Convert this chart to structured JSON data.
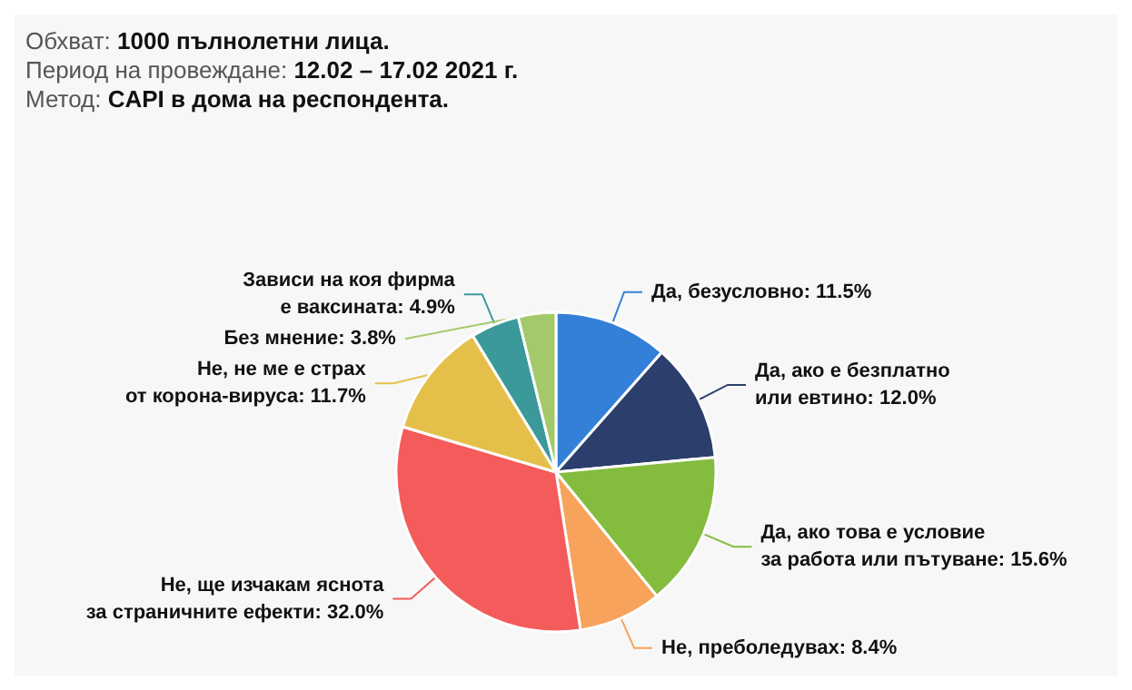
{
  "chart_data": {
    "type": "pie",
    "annotations": [
      "Обхват: 1000 пълнолетни лица.",
      "Период на провеждане: 12.02 – 17.02 2021 г.",
      "Метод: CAPI в дома на респондента."
    ],
    "categories": [
      "Да, безусловно",
      "Да, ако е безплатно\nили евтино",
      "Да, ако това е условие\nза работа или пътуване",
      "Не, преболедувах",
      "Не, ще изчакам яснота\nза страничните ефекти",
      "Не, не ме е страх\nот корона-вируса",
      "Зависи на коя фирма\nе ваксината",
      "Без мнение"
    ],
    "values": [
      11.5,
      12.0,
      15.6,
      8.4,
      32.0,
      11.7,
      4.9,
      3.8
    ],
    "colors": [
      "#3480d8",
      "#2c3e6b",
      "#84bd3e",
      "#f7a35c",
      "#f45b5b",
      "#e4c04b",
      "#3b9999",
      "#a3c96b"
    ],
    "value_labels": [
      ": 11.5%",
      ": 12.0%",
      ": 15.6%",
      ": 8.4%",
      ": 32.0%",
      ": 11.7%",
      ": 4.9%",
      ": 3.8%"
    ]
  }
}
